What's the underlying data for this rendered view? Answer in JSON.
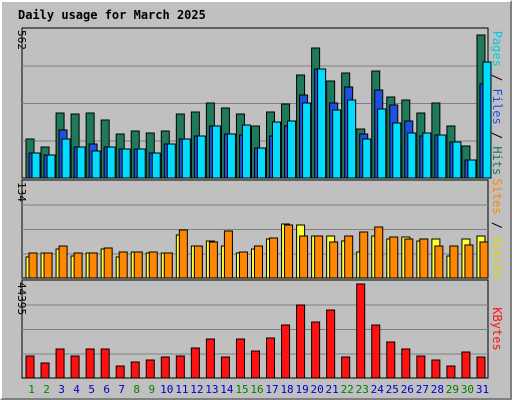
{
  "chart_data": {
    "type": "bar",
    "title": "Daily usage for March 2025",
    "categories": [
      "1",
      "2",
      "3",
      "4",
      "5",
      "6",
      "7",
      "8",
      "9",
      "10",
      "11",
      "12",
      "13",
      "14",
      "15",
      "16",
      "17",
      "18",
      "19",
      "20",
      "21",
      "22",
      "23",
      "24",
      "25",
      "26",
      "27",
      "28",
      "29",
      "30",
      "31"
    ],
    "weekend_days": [
      "1",
      "2",
      "8",
      "9",
      "15",
      "16",
      "22",
      "23",
      "29",
      "30"
    ],
    "colors": {
      "hits": "#1f7a5a",
      "files": "#2050e0",
      "pages": "#00ddff",
      "visits": "#ffff33",
      "sites": "#ff8800",
      "kbytes": "#ff1111",
      "title": "#0000cc",
      "weekday_label": "#0000cc",
      "weekend_label": "#008000",
      "grid": "#808080",
      "panel_bg": "#c0c0c0"
    },
    "panels": [
      {
        "id": "top",
        "ymax_label": "562",
        "ymax": 562,
        "grid_fractions": [
          0.25,
          0.5,
          0.75
        ],
        "side_labels": [
          {
            "text": "Pages",
            "color": "#00ccdd"
          },
          {
            "text": " / ",
            "color": "#000000"
          },
          {
            "text": "Files",
            "color": "#2050e0"
          },
          {
            "text": " / ",
            "color": "#000000"
          },
          {
            "text": "Hits",
            "color": "#1f7a5a"
          }
        ],
        "series": [
          {
            "name": "Hits",
            "color": "#1f7a5a",
            "values": [
              150,
              120,
              250,
              245,
              250,
              225,
              170,
              180,
              175,
              180,
              245,
              255,
              290,
              270,
              245,
              200,
              255,
              285,
              395,
              500,
              375,
              405,
              190,
              410,
              310,
              300,
              250,
              290,
              200,
              125,
              550
            ]
          },
          {
            "name": "Files",
            "color": "#2050e0",
            "values": [
              95,
              90,
              185,
              120,
              130,
              120,
              110,
              110,
              95,
              130,
              150,
              160,
              200,
              170,
              165,
              115,
              160,
              200,
              320,
              420,
              290,
              350,
              170,
              340,
              280,
              220,
              160,
              165,
              140,
              70,
              360
            ]
          },
          {
            "name": "Pages",
            "color": "#00ddff",
            "values": [
              95,
              90,
              150,
              120,
              105,
              120,
              110,
              110,
              95,
              130,
              150,
              160,
              200,
              170,
              205,
              115,
              215,
              220,
              290,
              420,
              260,
              300,
              150,
              265,
              210,
              175,
              175,
              165,
              140,
              70,
              445
            ]
          }
        ]
      },
      {
        "id": "middle",
        "ymax_label": "134",
        "ymax": 134,
        "grid_fractions": [
          0.25,
          0.5,
          0.75
        ],
        "side_labels": [
          {
            "text": "Sites",
            "color": "#ff8800"
          },
          {
            "text": " / ",
            "color": "#000000"
          },
          {
            "text": "Visits",
            "color": "#dddd00"
          }
        ],
        "series": [
          {
            "name": "Visits",
            "color": "#ffff33",
            "values": [
              30,
              35,
              42,
              32,
              35,
              41,
              30,
              37,
              35,
              35,
              62,
              45,
              53,
              45,
              35,
              42,
              55,
              77,
              75,
              60,
              60,
              53,
              37,
              60,
              55,
              58,
              53,
              55,
              32,
              55,
              60
            ]
          },
          {
            "name": "Sites",
            "color": "#ff8800",
            "values": [
              35,
              35,
              45,
              35,
              35,
              43,
              37,
              37,
              37,
              35,
              68,
              45,
              52,
              67,
              37,
              45,
              57,
              75,
              60,
              60,
              52,
              60,
              65,
              72,
              58,
              55,
              55,
              45,
              45,
              47,
              52
            ]
          }
        ]
      },
      {
        "id": "bottom",
        "ymax_label": "44395",
        "ymax": 44395,
        "grid_fractions": [
          0.25,
          0.5,
          0.75
        ],
        "side_labels": [
          {
            "text": "KBytes",
            "color": "#ff1111"
          }
        ],
        "series": [
          {
            "name": "KBytes",
            "color": "#ff1111",
            "values": [
              10200,
              7000,
              13500,
              10200,
              13900,
              13900,
              5600,
              7500,
              8500,
              9800,
              10300,
              14200,
              18500,
              10000,
              18500,
              12600,
              18800,
              25200,
              34500,
              26400,
              32000,
              10000,
              44395,
              25000,
              17200,
              13800,
              10500,
              8400,
              5600,
              12500,
              9700
            ]
          }
        ]
      }
    ]
  }
}
